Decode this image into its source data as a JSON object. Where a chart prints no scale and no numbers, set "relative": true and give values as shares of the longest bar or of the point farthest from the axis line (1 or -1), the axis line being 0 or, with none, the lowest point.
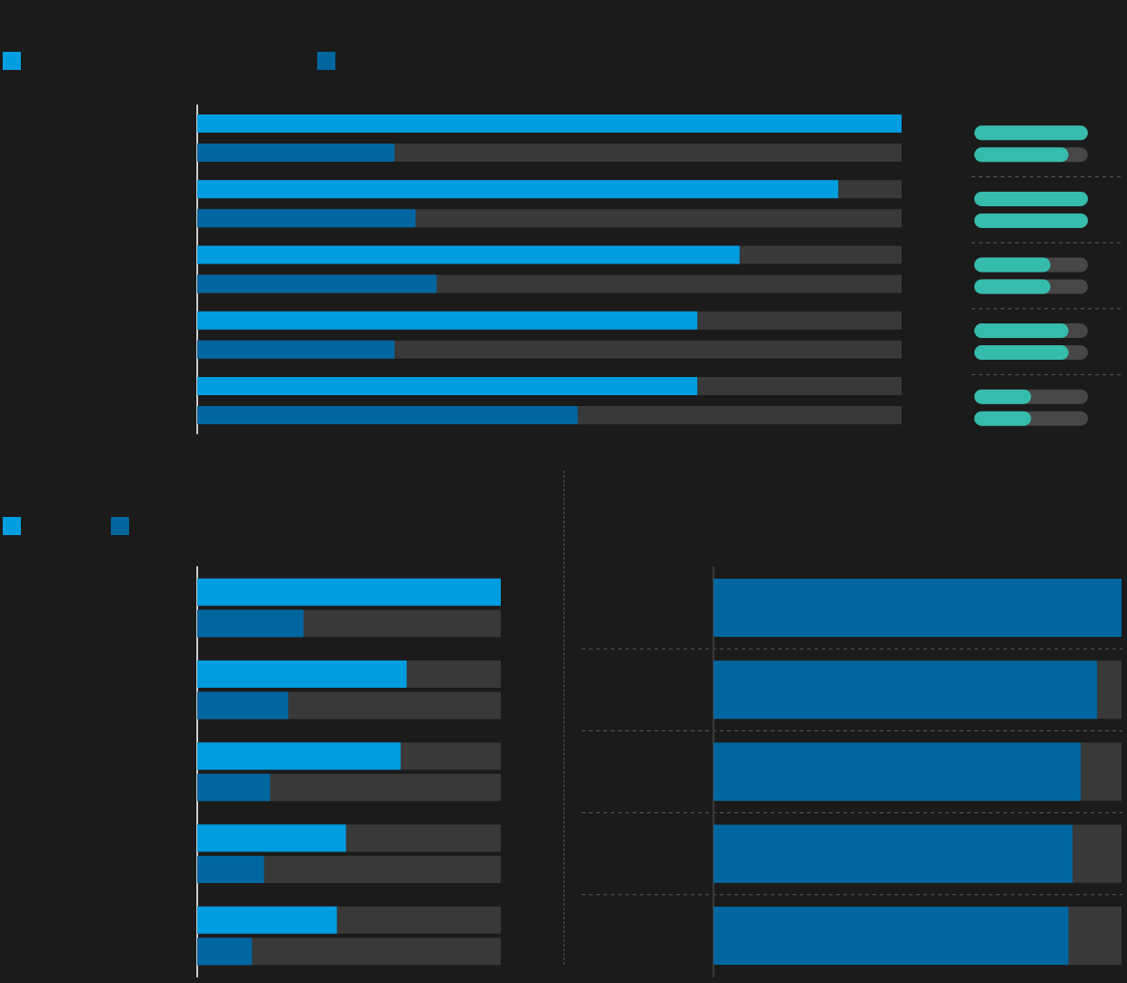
{
  "chart_data": [
    {
      "type": "bar",
      "orientation": "horizontal",
      "relative": true,
      "categories": [
        null,
        null,
        null,
        null,
        null
      ],
      "series": [
        {
          "color": "#009de0",
          "values": [
            1,
            0.91,
            0.77,
            0.71,
            0.71
          ]
        },
        {
          "color": "#0066a0",
          "values": [
            0.28,
            0.31,
            0.34,
            0.28,
            0.54
          ]
        }
      ]
    },
    {
      "type": "bar",
      "orientation": "horizontal",
      "relative": true,
      "categories": [
        null,
        null,
        null,
        null,
        null
      ],
      "series": [
        {
          "color": "#35bcad",
          "values": [
            1,
            1,
            0.67,
            0.83,
            0.5
          ]
        },
        {
          "color": "#35bcad",
          "values": [
            0.83,
            1,
            0.67,
            0.83,
            0.5
          ]
        }
      ],
      "grid": "y"
    },
    {
      "type": "bar",
      "orientation": "horizontal",
      "relative": true,
      "categories": [
        null,
        null,
        null,
        null,
        null
      ],
      "series": [
        {
          "color": "#009de0",
          "values": [
            1,
            0.69,
            0.67,
            0.49,
            0.46
          ]
        },
        {
          "color": "#0066a0",
          "values": [
            0.35,
            0.3,
            0.24,
            0.22,
            0.18
          ]
        }
      ]
    },
    {
      "type": "bar",
      "orientation": "horizontal",
      "relative": true,
      "categories": [
        null,
        null,
        null,
        null,
        null
      ],
      "series": [
        {
          "color": "#0066a0",
          "values": [
            1,
            0.94,
            0.9,
            0.88,
            0.87
          ]
        }
      ],
      "grid": "y"
    }
  ]
}
